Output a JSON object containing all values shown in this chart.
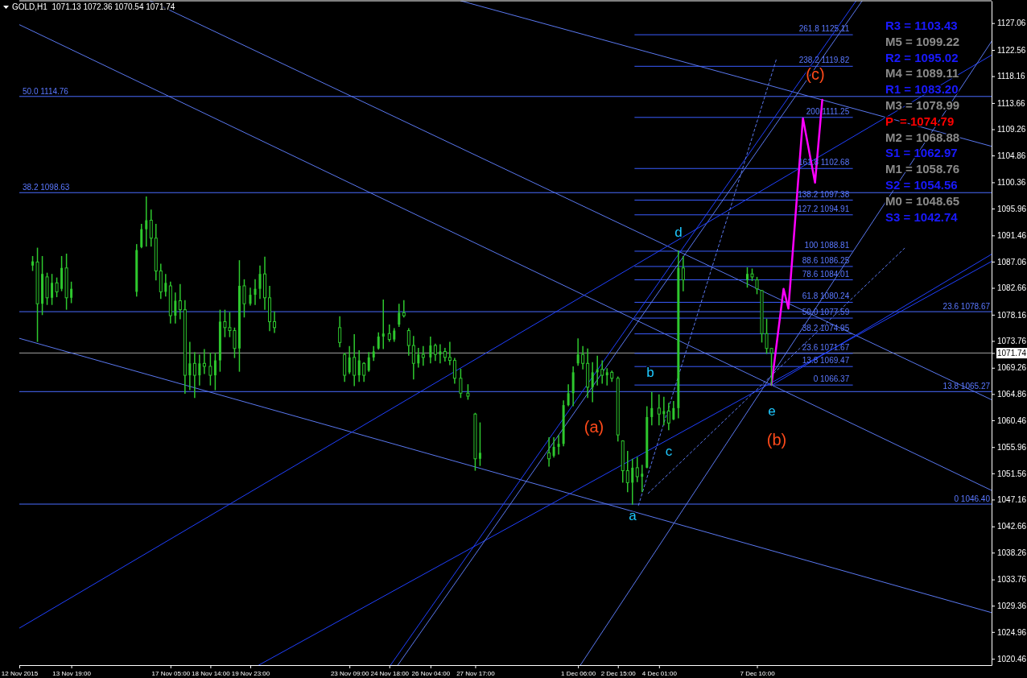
{
  "chart_data": {
    "type": "candlestick",
    "title": "GOLD,H1  1071.13 1072.36 1070.54 1071.74",
    "color": "#2ec82e",
    "xlim": [
      "2015-11-12",
      "2015-12-15T12:00"
    ],
    "ylim": [
      1019.4,
      1130.8
    ],
    "xticks": [
      {
        "value": "2015-11-12",
        "label": "12 Nov 2015"
      },
      {
        "value": "2015-11-13T19:00",
        "label": "13 Nov 19:00"
      },
      {
        "value": "2015-11-17T05:00",
        "label": "17 Nov 05:00"
      },
      {
        "value": "2015-11-18T14:00",
        "label": "18 Nov 14:00"
      },
      {
        "value": "2015-11-19T23:00",
        "label": "19 Nov 23:00"
      },
      {
        "value": "2015-11-23T09:00",
        "label": "23 Nov 09:00"
      },
      {
        "value": "2015-11-24T18:00",
        "label": "24 Nov 18:00"
      },
      {
        "value": "2015-11-26T04:00",
        "label": "26 Nov 04:00"
      },
      {
        "value": "2015-11-27T17:00",
        "label": "27 Nov 17:00"
      },
      {
        "value": "2015-12-01T06:00",
        "label": "1 Dec 06:00"
      },
      {
        "value": "2015-12-02T15:00",
        "label": "2 Dec 15:00"
      },
      {
        "value": "2015-12-04T01:00",
        "label": "4 Dec 01:00"
      },
      {
        "value": "2015-12-07T10:00",
        "label": "7 Dec 10:00"
      }
    ],
    "yticks": [
      1127.06,
      1122.56,
      1118.16,
      1113.66,
      1109.26,
      1104.86,
      1100.36,
      1095.96,
      1091.46,
      1087.06,
      1082.66,
      1078.16,
      1073.76,
      1071.74,
      1069.26,
      1064.86,
      1060.46,
      1055.96,
      1051.56,
      1047.16,
      1042.66,
      1038.26,
      1033.76,
      1029.36,
      1024.96,
      1020.46
    ],
    "x": [
      "2015-11-12T11:00",
      "2015-11-12T15:00",
      "2015-11-12T19:00",
      "2015-11-12T23:00",
      "2015-11-13T03:00",
      "2015-11-13T07:00",
      "2015-11-13T11:00",
      "2015-11-13T15:00",
      "2015-11-13T19:00",
      "2015-11-16T01:00",
      "2015-11-16T05:00",
      "2015-11-16T09:00",
      "2015-11-16T13:00",
      "2015-11-16T17:00",
      "2015-11-16T21:00",
      "2015-11-17T01:00",
      "2015-11-17T05:00",
      "2015-11-17T09:00",
      "2015-11-17T13:00",
      "2015-11-17T17:00",
      "2015-11-17T21:00",
      "2015-11-18T01:00",
      "2015-11-18T05:00",
      "2015-11-18T09:00",
      "2015-11-18T14:00",
      "2015-11-18T18:00",
      "2015-11-18T22:00",
      "2015-11-19T02:00",
      "2015-11-19T06:00",
      "2015-11-19T10:00",
      "2015-11-19T14:00",
      "2015-11-19T18:00",
      "2015-11-19T23:00",
      "2015-11-20T03:00",
      "2015-11-20T07:00",
      "2015-11-20T11:00",
      "2015-11-20T15:00",
      "2015-11-20T19:00",
      "2015-11-23T01:00",
      "2015-11-23T05:00",
      "2015-11-23T09:00",
      "2015-11-23T13:00",
      "2015-11-23T17:00",
      "2015-11-23T21:00",
      "2015-11-24T01:00",
      "2015-11-24T05:00",
      "2015-11-24T09:00",
      "2015-11-24T13:00",
      "2015-11-24T18:00",
      "2015-11-24T22:00",
      "2015-11-25T02:00",
      "2015-11-25T06:00",
      "2015-11-25T10:00",
      "2015-11-25T14:00",
      "2015-11-25T18:00",
      "2015-11-25T22:00",
      "2015-11-26T04:00",
      "2015-11-26T08:00",
      "2015-11-26T12:00",
      "2015-11-26T16:00",
      "2015-11-26T20:00",
      "2015-11-27T00:00",
      "2015-11-27T05:00",
      "2015-11-27T11:00",
      "2015-11-27T17:00",
      "2015-11-27T21:00",
      "2015-11-30T06:00",
      "2015-11-30T10:00",
      "2015-11-30T14:00",
      "2015-11-30T18:00",
      "2015-11-30T22:00",
      "2015-12-01T02:00",
      "2015-12-01T06:00",
      "2015-12-01T10:00",
      "2015-12-01T14:00",
      "2015-12-01T18:00",
      "2015-12-01T22:00",
      "2015-12-02T02:00",
      "2015-12-02T06:00",
      "2015-12-02T10:00",
      "2015-12-02T15:00",
      "2015-12-02T19:00",
      "2015-12-02T23:00",
      "2015-12-03T03:00",
      "2015-12-03T07:00",
      "2015-12-03T11:00",
      "2015-12-03T15:00",
      "2015-12-03T19:00",
      "2015-12-04T01:00",
      "2015-12-04T05:00",
      "2015-12-04T09:00",
      "2015-12-04T13:00",
      "2015-12-04T17:00",
      "2015-12-04T21:00",
      "2015-12-07T02:00",
      "2015-12-07T06:00",
      "2015-12-07T10:00",
      "2015-12-07T14:00",
      "2015-12-07T18:00",
      "2015-12-07T22:00"
    ],
    "ohlc": [
      [
        1086.4,
        1087.9,
        1085.6,
        1087.1
      ],
      [
        1087.0,
        1089.3,
        1073.7,
        1080.0
      ],
      [
        1080.0,
        1087.9,
        1078.2,
        1085.0
      ],
      [
        1084.5,
        1085.1,
        1079.9,
        1081.0
      ],
      [
        1081.0,
        1084.9,
        1079.9,
        1083.5
      ],
      [
        1083.5,
        1084.3,
        1081.2,
        1082.0
      ],
      [
        1082.5,
        1087.9,
        1082.2,
        1086.0
      ],
      [
        1086.0,
        1088.3,
        1079.1,
        1081.0
      ],
      [
        1081.0,
        1083.6,
        1080.2,
        1082.5
      ],
      [
        1082.0,
        1089.9,
        1081.3,
        1089.0
      ],
      [
        1089.5,
        1093.3,
        1089.4,
        1092.5
      ],
      [
        1092.5,
        1097.9,
        1089.7,
        1094.0
      ],
      [
        1094.0,
        1095.7,
        1089.7,
        1091.0
      ],
      [
        1091.0,
        1093.3,
        1084.0,
        1085.5
      ],
      [
        1085.5,
        1086.6,
        1080.9,
        1082.0
      ],
      [
        1082.0,
        1084.9,
        1081.3,
        1083.5
      ],
      [
        1083.0,
        1083.6,
        1076.8,
        1078.0
      ],
      [
        1078.0,
        1081.8,
        1076.8,
        1080.5
      ],
      [
        1080.5,
        1083.2,
        1077.5,
        1079.0
      ],
      [
        1079.0,
        1080.5,
        1065.0,
        1068.0
      ],
      [
        1068.0,
        1073.5,
        1065.6,
        1070.0
      ],
      [
        1070.0,
        1071.8,
        1064.3,
        1068.0
      ],
      [
        1068.0,
        1071.4,
        1066.4,
        1070.0
      ],
      [
        1070.0,
        1072.3,
        1068.3,
        1069.5
      ],
      [
        1069.5,
        1071.7,
        1066.4,
        1068.0
      ],
      [
        1068.0,
        1071.7,
        1065.6,
        1070.5
      ],
      [
        1070.5,
        1078.9,
        1068.7,
        1077.0
      ],
      [
        1077.0,
        1078.9,
        1074.5,
        1076.0
      ],
      [
        1076.0,
        1078.5,
        1074.5,
        1075.5
      ],
      [
        1075.5,
        1075.9,
        1071.0,
        1072.5
      ],
      [
        1072.5,
        1087.2,
        1068.7,
        1083.0
      ],
      [
        1083.0,
        1084.0,
        1077.8,
        1080.0
      ],
      [
        1080.0,
        1082.6,
        1079.8,
        1081.5
      ],
      [
        1081.5,
        1084.0,
        1079.9,
        1082.5
      ],
      [
        1082.5,
        1086.3,
        1080.9,
        1085.0
      ],
      [
        1085.0,
        1087.8,
        1079.1,
        1081.0
      ],
      [
        1081.0,
        1082.9,
        1075.5,
        1077.0
      ],
      [
        1077.0,
        1078.6,
        1075.2,
        1076.0
      ],
      [
        1076.0,
        1077.8,
        1072.8,
        1073.5
      ],
      [
        1071.5,
        1071.7,
        1067.0,
        1068.0
      ],
      [
        1068.5,
        1072.8,
        1068.3,
        1071.0
      ],
      [
        1071.0,
        1074.8,
        1066.3,
        1068.0
      ],
      [
        1068.0,
        1072.1,
        1067.0,
        1070.5
      ],
      [
        1070.0,
        1070.1,
        1067.0,
        1068.0
      ],
      [
        1068.8,
        1071.8,
        1068.7,
        1071.0
      ],
      [
        1071.0,
        1072.8,
        1070.5,
        1072.0
      ],
      [
        1072.5,
        1075.1,
        1072.4,
        1074.5
      ],
      [
        1074.5,
        1080.6,
        1072.5,
        1075.0
      ],
      [
        1075.0,
        1076.4,
        1073.7,
        1074.0
      ],
      [
        1074.0,
        1075.8,
        1073.7,
        1075.5
      ],
      [
        1076.5,
        1079.9,
        1076.2,
        1078.5
      ],
      [
        1078.5,
        1080.5,
        1077.8,
        1078.0
      ],
      [
        1075.5,
        1075.8,
        1071.4,
        1073.0
      ],
      [
        1073.0,
        1074.5,
        1067.4,
        1070.0
      ],
      [
        1070.0,
        1072.5,
        1069.4,
        1071.5
      ],
      [
        1071.5,
        1072.8,
        1069.7,
        1071.0
      ],
      [
        1071.0,
        1074.4,
        1070.1,
        1073.0
      ],
      [
        1073.0,
        1073.2,
        1070.5,
        1071.5
      ],
      [
        1071.5,
        1073.1,
        1070.1,
        1072.0
      ],
      [
        1072.0,
        1072.5,
        1070.4,
        1071.0
      ],
      [
        1071.0,
        1073.5,
        1069.8,
        1070.5
      ],
      [
        1070.5,
        1070.8,
        1066.7,
        1067.5
      ],
      [
        1067.5,
        1069.0,
        1064.3,
        1065.0
      ],
      [
        1065.0,
        1066.4,
        1064.0,
        1064.5
      ],
      [
        1061.5,
        1061.6,
        1052.1,
        1054.0
      ],
      [
        1054.0,
        1060.0,
        1052.9,
        1055.0
      ],
      [
        1055.0,
        1057.5,
        1052.8,
        1054.0
      ],
      [
        1054.5,
        1057.5,
        1054.3,
        1056.0
      ],
      [
        1056.0,
        1057.9,
        1054.8,
        1056.5
      ],
      [
        1056.5,
        1063.7,
        1056.2,
        1063.0
      ],
      [
        1063.0,
        1066.4,
        1062.9,
        1065.0
      ],
      [
        1065.0,
        1069.4,
        1062.9,
        1068.5
      ],
      [
        1070.0,
        1074.1,
        1069.7,
        1071.5
      ],
      [
        1071.5,
        1072.8,
        1069.1,
        1070.0
      ],
      [
        1070.0,
        1072.4,
        1064.3,
        1066.0
      ],
      [
        1066.0,
        1070.1,
        1063.6,
        1068.5
      ],
      [
        1068.5,
        1071.2,
        1066.4,
        1069.0
      ],
      [
        1069.0,
        1070.4,
        1066.7,
        1068.0
      ],
      [
        1068.0,
        1069.1,
        1066.4,
        1068.5
      ],
      [
        1068.5,
        1068.7,
        1067.0,
        1067.5
      ],
      [
        1067.5,
        1067.7,
        1057.0,
        1058.0
      ],
      [
        1057.0,
        1057.0,
        1050.1,
        1052.0
      ],
      [
        1052.0,
        1055.2,
        1048.5,
        1050.0
      ],
      [
        1050.0,
        1053.9,
        1046.4,
        1052.5
      ],
      [
        1052.5,
        1054.2,
        1050.2,
        1051.0
      ],
      [
        1051.0,
        1052.9,
        1048.5,
        1051.5
      ],
      [
        1052.5,
        1062.7,
        1052.5,
        1061.0
      ],
      [
        1061.0,
        1065.1,
        1059.7,
        1062.5
      ],
      [
        1062.5,
        1064.7,
        1059.7,
        1061.5
      ],
      [
        1061.5,
        1064.3,
        1059.7,
        1062.0
      ],
      [
        1062.0,
        1063.3,
        1058.9,
        1060.0
      ],
      [
        1060.6,
        1063.6,
        1060.6,
        1062.5
      ],
      [
        1062.5,
        1088.81,
        1060.9,
        1086.0
      ],
      [
        1086.0,
        1087.9,
        1082.2,
        1084.0
      ],
      [
        1084.0,
        1086.0,
        1082.8,
        1085.0
      ],
      [
        1085.0,
        1085.8,
        1083.9,
        1084.5
      ],
      [
        1084.0,
        1084.4,
        1081.7,
        1082.5
      ],
      [
        1082.2,
        1082.2,
        1073.6,
        1075.0
      ],
      [
        1075.0,
        1077.4,
        1071.7,
        1072.5
      ],
      [
        1072.5,
        1072.5,
        1066.37,
        1071.74
      ]
    ],
    "series": [
      {
        "type": "line",
        "x": [
          "2015-12-03T05:00",
          "2015-12-10T17:00"
        ],
        "values": [
          1125.11,
          1125.11
        ],
        "color": "#3a5cff"
      },
      {
        "type": "line",
        "x": [
          "2015-12-03T05:00",
          "2015-12-10T17:00"
        ],
        "values": [
          1119.82,
          1119.82
        ],
        "color": "#3a5cff"
      },
      {
        "type": "line",
        "x": [
          "2015-12-03T05:00",
          "2015-12-10T17:00"
        ],
        "values": [
          1111.25,
          1111.25
        ],
        "color": "#3a5cff"
      },
      {
        "type": "line",
        "x": [
          "2015-12-03T05:00",
          "2015-12-10T17:00"
        ],
        "values": [
          1102.68,
          1102.68
        ],
        "color": "#3a5cff"
      },
      {
        "type": "line",
        "x": [
          "2015-12-03T05:00",
          "2015-12-10T17:00"
        ],
        "values": [
          1097.38,
          1097.38
        ],
        "color": "#3a5cff"
      },
      {
        "type": "line",
        "x": [
          "2015-12-03T05:00",
          "2015-12-10T17:00"
        ],
        "values": [
          1094.91,
          1094.91
        ],
        "color": "#3a5cff"
      },
      {
        "type": "line",
        "x": [
          "2015-12-03T05:00",
          "2015-12-10T17:00"
        ],
        "values": [
          1088.81,
          1088.81
        ],
        "color": "#3a5cff"
      },
      {
        "type": "line",
        "x": [
          "2015-12-03T05:00",
          "2015-12-10T17:00"
        ],
        "values": [
          1086.25,
          1086.25
        ],
        "color": "#3a5cff"
      },
      {
        "type": "line",
        "x": [
          "2015-12-03T05:00",
          "2015-12-10T17:00"
        ],
        "values": [
          1084.01,
          1084.01
        ],
        "color": "#3a5cff"
      },
      {
        "type": "line",
        "x": [
          "2015-12-03T05:00",
          "2015-12-10T17:00"
        ],
        "values": [
          1080.24,
          1080.24
        ],
        "color": "#3a5cff"
      },
      {
        "type": "line",
        "x": [
          "2015-12-03T05:00",
          "2015-12-10T17:00"
        ],
        "values": [
          1077.59,
          1077.59
        ],
        "color": "#3a5cff"
      },
      {
        "type": "line",
        "x": [
          "2015-12-03T05:00",
          "2015-12-10T17:00"
        ],
        "values": [
          1074.95,
          1074.95
        ],
        "color": "#3a5cff"
      },
      {
        "type": "line",
        "x": [
          "2015-12-03T05:00",
          "2015-12-10T17:00"
        ],
        "values": [
          1071.67,
          1071.67
        ],
        "color": "#3a5cff"
      },
      {
        "type": "line",
        "x": [
          "2015-12-03T05:00",
          "2015-12-10T17:00"
        ],
        "values": [
          1069.47,
          1069.47
        ],
        "color": "#3a5cff"
      },
      {
        "type": "line",
        "x": [
          "2015-12-03T05:00",
          "2015-12-10T17:00"
        ],
        "values": [
          1066.37,
          1066.37
        ],
        "color": "#3a5cff"
      },
      {
        "type": "line",
        "x": [
          "2015-11-12T00:00",
          "2015-12-15T12:00"
        ],
        "values": [
          1126.8,
          1048.7
        ],
        "color": "#5a78f0"
      },
      {
        "type": "line",
        "x": [
          "2015-11-16T12:00",
          "2015-12-15T12:00"
        ],
        "values": [
          1130.8,
          1063.9
        ],
        "color": "#5a78f0"
      },
      {
        "type": "line",
        "x": [
          "2015-11-27T05:00",
          "2015-12-15T12:00"
        ],
        "values": [
          1130.8,
          1106.4
        ],
        "color": "#5a78f0"
      },
      {
        "type": "line",
        "x": [
          "2015-11-12T00:00",
          "2015-12-15T12:00"
        ],
        "values": [
          1074.2,
          1028.2
        ],
        "color": "#5a78f0"
      },
      {
        "type": "line",
        "x": [
          "2015-11-20T06:00",
          "2015-12-15T12:00"
        ],
        "values": [
          1019.4,
          1087.1
        ],
        "color": "#2040ff"
      },
      {
        "type": "line",
        "x": [
          "2015-11-24T19:00",
          "2015-12-10T20:00"
        ],
        "values": [
          1019.4,
          1130.8
        ],
        "color": "#2040ff"
      },
      {
        "type": "line",
        "x": [
          "2015-11-25T01:00",
          "2015-12-11T01:00"
        ],
        "values": [
          1019.4,
          1130.8
        ],
        "color": "#5a78f0"
      },
      {
        "type": "line",
        "x": [
          "2015-11-12T00:00",
          "2015-12-15T12:00"
        ],
        "values": [
          1025.6,
          1121.7
        ],
        "color": "#2040ff"
      },
      {
        "type": "line",
        "x": [
          "2015-12-01T08:00",
          "2015-12-15T12:00"
        ],
        "values": [
          1019.4,
          1124.0
        ],
        "color": "#5a78f0"
      },
      {
        "type": "line",
        "x": [
          "2015-12-07T22:00",
          "2015-12-15T12:00"
        ],
        "values": [
          1066.3,
          1088.3
        ],
        "color": "#2040ff"
      },
      {
        "type": "line",
        "x": [
          "2015-12-03T08:00",
          "2015-12-08T02:00"
        ],
        "values": [
          1046.2,
          1121.0
        ],
        "color": "#5a78f0",
        "line_style": "dashed"
      },
      {
        "type": "line",
        "x": [
          "2015-12-03T16:00",
          "2015-12-12T12:00"
        ],
        "values": [
          1048.2,
          1089.3
        ],
        "color": "#5a78f0",
        "line_style": "dashed"
      },
      {
        "type": "line",
        "x": [
          "2015-12-07T22:00",
          "2015-12-08T08:00",
          "2015-12-08T12:00",
          "2015-12-09T00:00",
          "2015-12-09T10:00",
          "2015-12-09T16:00"
        ],
        "values": [
          1066.4,
          1082.5,
          1079.2,
          1111.1,
          1100.3,
          1114.2
        ],
        "color": "#ff00ff"
      }
    ],
    "ref_lines": [
      {
        "axis": "y",
        "value": 1114.76,
        "label": "50.0 1114.76",
        "color": "#4a6cff"
      },
      {
        "axis": "y",
        "value": 1098.63,
        "label": "38.2 1098.63",
        "color": "#4a6cff"
      },
      {
        "axis": "y",
        "value": 1078.67,
        "label": "23.6 1078.67",
        "color": "#4a6cff"
      },
      {
        "axis": "y",
        "value": 1065.27,
        "label": "13.8 1065.27",
        "color": "#4a6cff"
      },
      {
        "axis": "y",
        "value": 1046.4,
        "label": "0 1046.40",
        "color": "#4a6cff"
      },
      {
        "axis": "y",
        "value": 1071.74,
        "color": "#a0a0a0"
      }
    ],
    "annotations": [
      "R3 = 1103.43",
      "M5 = 1099.22",
      "R2 = 1095.02",
      "M4 = 1089.11",
      "R1 = 1083.20",
      "M3 = 1078.99",
      "P  = 1074.79",
      "M2 = 1068.88",
      "S1 = 1062.97",
      "M1 = 1058.76",
      "S2 = 1054.56",
      "M0 = 1048.65",
      "S3 = 1042.74",
      "a",
      "b",
      "c",
      "d",
      "e",
      "(a)",
      "(b)",
      "(c)",
      {
        "text": "261.8 1125.11",
        "x": "2015-12-10T17:00",
        "y": 1125.11
      },
      {
        "text": "238.2 1119.82",
        "x": "2015-12-10T17:00",
        "y": 1119.82
      },
      {
        "text": "200 1111.25",
        "x": "2015-12-10T17:00",
        "y": 1111.25
      },
      {
        "text": "161.8 1102.68",
        "x": "2015-12-10T17:00",
        "y": 1102.68
      },
      {
        "text": "138.2 1097.38",
        "x": "2015-12-10T17:00",
        "y": 1097.38
      },
      {
        "text": "127.2 1094.91",
        "x": "2015-12-10T17:00",
        "y": 1094.91
      },
      {
        "text": "100 1088.81",
        "x": "2015-12-10T17:00",
        "y": 1088.81
      },
      {
        "text": "88.6 1086.25",
        "x": "2015-12-10T17:00",
        "y": 1086.25
      },
      {
        "text": "78.6 1084.01",
        "x": "2015-12-10T17:00",
        "y": 1084.01
      },
      {
        "text": "61.8 1080.24",
        "x": "2015-12-10T17:00",
        "y": 1080.24
      },
      {
        "text": "50.0 1077.59",
        "x": "2015-12-10T17:00",
        "y": 1077.59
      },
      {
        "text": "38.2 1074.95",
        "x": "2015-12-10T17:00",
        "y": 1074.95
      },
      {
        "text": "23.6 1071.67",
        "x": "2015-12-10T17:00",
        "y": 1071.67
      },
      {
        "text": "13.8 1069.47",
        "x": "2015-12-10T17:00",
        "y": 1069.47
      },
      {
        "text": "0 1066.37",
        "x": "2015-12-10T17:00",
        "y": 1066.37
      }
    ]
  }
}
